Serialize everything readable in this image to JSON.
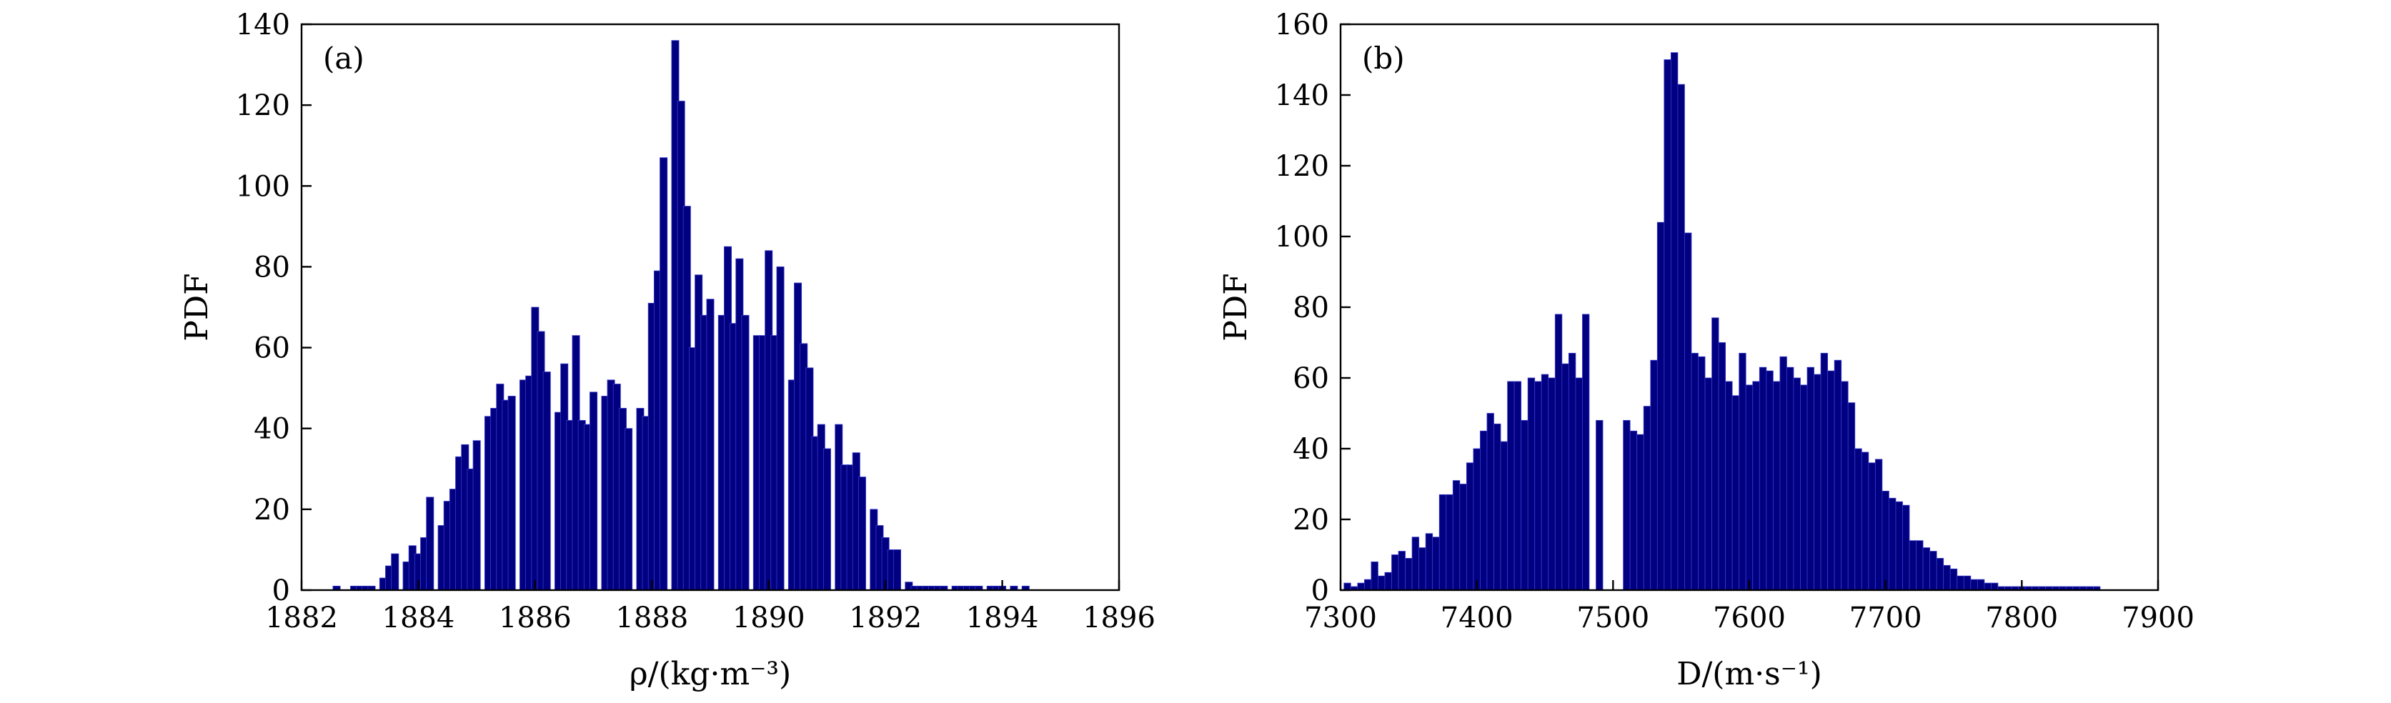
{
  "chart_data": [
    {
      "type": "bar",
      "panel_label": "(a)",
      "xlabel": "ρ/(kg·m⁻³)",
      "ylabel": "PDF",
      "xlim": [
        1882,
        1896
      ],
      "ylim": [
        0,
        140
      ],
      "xticks": [
        1882,
        1884,
        1886,
        1888,
        1890,
        1892,
        1894,
        1896
      ],
      "yticks": [
        0,
        20,
        40,
        60,
        80,
        100,
        120,
        140
      ],
      "bin_width": 0.125,
      "x": [
        1882.6,
        1882.9,
        1883.0,
        1883.1,
        1883.2,
        1883.4,
        1883.5,
        1883.6,
        1883.8,
        1883.9,
        1884.0,
        1884.1,
        1884.2,
        1884.4,
        1884.5,
        1884.6,
        1884.7,
        1884.8,
        1884.9,
        1885.0,
        1885.2,
        1885.3,
        1885.4,
        1885.5,
        1885.6,
        1885.8,
        1885.9,
        1886.0,
        1886.1,
        1886.2,
        1886.4,
        1886.5,
        1886.6,
        1886.7,
        1886.8,
        1886.9,
        1887.0,
        1887.2,
        1887.3,
        1887.4,
        1887.5,
        1887.6,
        1887.8,
        1887.9,
        1888.0,
        1888.1,
        1888.2,
        1888.4,
        1888.5,
        1888.6,
        1888.7,
        1888.8,
        1888.9,
        1889.0,
        1889.2,
        1889.3,
        1889.4,
        1889.5,
        1889.6,
        1889.8,
        1889.9,
        1890.0,
        1890.1,
        1890.2,
        1890.4,
        1890.5,
        1890.6,
        1890.7,
        1890.8,
        1890.9,
        1891.0,
        1891.2,
        1891.3,
        1891.4,
        1891.5,
        1891.6,
        1891.8,
        1891.9,
        1892.0,
        1892.1,
        1892.2,
        1892.4,
        1892.5,
        1892.6,
        1892.7,
        1892.8,
        1892.9,
        1893.0,
        1893.2,
        1893.3,
        1893.4,
        1893.5,
        1893.6,
        1893.8,
        1893.9,
        1894.0,
        1894.2,
        1894.4
      ],
      "values": [
        1,
        1,
        1,
        1,
        1,
        3,
        6,
        9,
        7,
        11,
        9,
        13,
        23,
        16,
        22,
        25,
        33,
        36,
        30,
        37,
        43,
        45,
        51,
        47,
        48,
        52,
        53,
        70,
        64,
        54,
        44,
        56,
        42,
        63,
        42,
        41,
        49,
        48,
        52,
        51,
        45,
        40,
        45,
        43,
        71,
        79,
        107,
        136,
        121,
        95,
        60,
        78,
        68,
        72,
        68,
        85,
        66,
        82,
        68,
        63,
        63,
        84,
        63,
        80,
        52,
        76,
        61,
        55,
        38,
        41,
        35,
        41,
        31,
        31,
        34,
        28,
        20,
        16,
        13,
        10,
        10,
        2,
        1,
        1,
        1,
        1,
        1,
        1,
        1,
        1,
        1,
        1,
        1,
        1,
        1,
        1,
        1,
        1
      ]
    },
    {
      "type": "bar",
      "panel_label": "(b)",
      "xlabel": "D/(m·s⁻¹)",
      "ylabel": "PDF",
      "xlim": [
        7300,
        7900
      ],
      "ylim": [
        0,
        160
      ],
      "xticks": [
        7300,
        7400,
        7500,
        7600,
        7700,
        7800,
        7900
      ],
      "yticks": [
        0,
        20,
        40,
        60,
        80,
        100,
        120,
        140,
        160
      ],
      "bin_width": 5,
      "x": [
        7305,
        7310,
        7315,
        7320,
        7325,
        7330,
        7335,
        7340,
        7345,
        7350,
        7355,
        7360,
        7365,
        7370,
        7375,
        7380,
        7385,
        7390,
        7395,
        7400,
        7405,
        7410,
        7415,
        7420,
        7425,
        7430,
        7435,
        7440,
        7445,
        7450,
        7455,
        7460,
        7465,
        7470,
        7475,
        7480,
        7485,
        7490,
        7510,
        7515,
        7520,
        7525,
        7530,
        7535,
        7540,
        7545,
        7550,
        7555,
        7560,
        7565,
        7570,
        7575,
        7580,
        7585,
        7590,
        7595,
        7600,
        7605,
        7610,
        7615,
        7620,
        7625,
        7630,
        7635,
        7640,
        7645,
        7650,
        7655,
        7660,
        7665,
        7670,
        7675,
        7680,
        7685,
        7690,
        7695,
        7700,
        7705,
        7710,
        7715,
        7720,
        7725,
        7730,
        7735,
        7740,
        7745,
        7750,
        7755,
        7760,
        7765,
        7770,
        7775,
        7780,
        7785,
        7790,
        7795,
        7800,
        7805,
        7810,
        7815,
        7820,
        7825,
        7830,
        7835,
        7840,
        7845,
        7850,
        7855
      ],
      "values": [
        2,
        1,
        2,
        3,
        8,
        4,
        5,
        10,
        11,
        9,
        15,
        12,
        16,
        15,
        27,
        27,
        31,
        30,
        36,
        40,
        45,
        50,
        47,
        42,
        59,
        59,
        48,
        60,
        59,
        61,
        60,
        78,
        64,
        67,
        60,
        78,
        0,
        48,
        48,
        45,
        44,
        52,
        65,
        104,
        150,
        152,
        143,
        101,
        67,
        66,
        60,
        77,
        70,
        59,
        55,
        67,
        58,
        59,
        63,
        62,
        59,
        66,
        63,
        60,
        58,
        63,
        61,
        67,
        62,
        65,
        59,
        53,
        40,
        39,
        36,
        37,
        28,
        26,
        25,
        24,
        14,
        14,
        12,
        11,
        9,
        7,
        6,
        4,
        4,
        3,
        3,
        2,
        2,
        1,
        1,
        1,
        1,
        1,
        1,
        1,
        1,
        1,
        1,
        1,
        1,
        1,
        1,
        1
      ]
    }
  ]
}
